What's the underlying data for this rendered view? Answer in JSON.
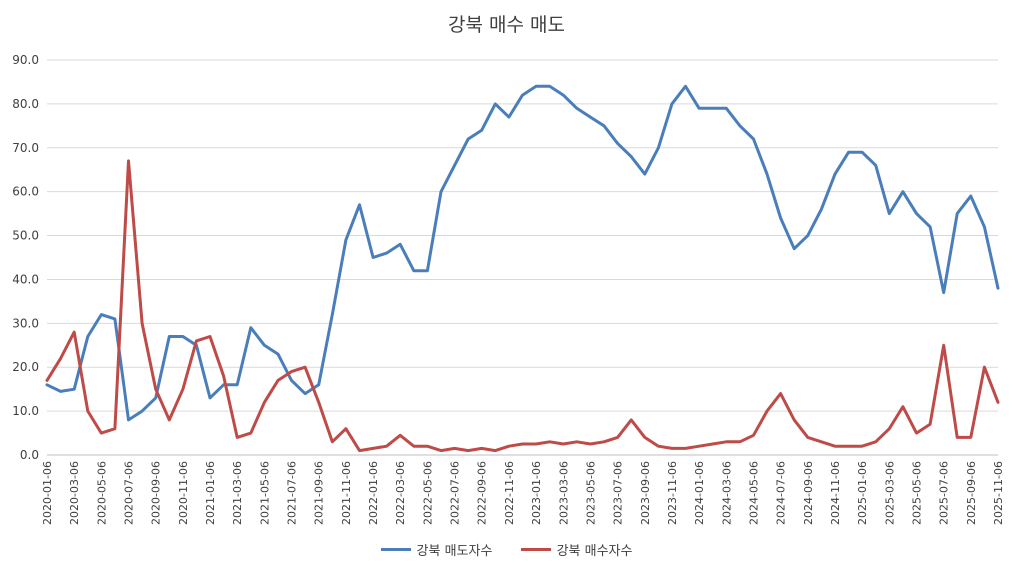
{
  "chart_data": {
    "type": "line",
    "title": "강북 매수 매도",
    "xlabel": "",
    "ylabel": "",
    "ylim": [
      0,
      90
    ],
    "yticks": [
      "0.0",
      "10.0",
      "20.0",
      "30.0",
      "40.0",
      "50.0",
      "60.0",
      "70.0",
      "80.0",
      "90.0"
    ],
    "grid": true,
    "legend_position": "bottom",
    "x_tick_labels": [
      "2020-01-06",
      "2020-03-06",
      "2020-05-06",
      "2020-07-06",
      "2020-09-06",
      "2020-11-06",
      "2021-01-06",
      "2021-03-06",
      "2021-05-06",
      "2021-07-06",
      "2021-09-06",
      "2021-11-06",
      "2022-01-06",
      "2022-03-06",
      "2022-05-06",
      "2022-07-06",
      "2022-09-06",
      "2022-11-06",
      "2023-01-06",
      "2023-03-06",
      "2023-05-06",
      "2023-07-06",
      "2023-09-06",
      "2023-11-06",
      "2024-01-06",
      "2024-03-06",
      "2024-05-06",
      "2024-07-06",
      "2024-09-06",
      "2024-11-06",
      "2025-01-06",
      "2025-03-06",
      "2025-05-06",
      "2025-07-06",
      "2025-09-06",
      "2025-11-06"
    ],
    "x": [
      "2020-01",
      "2020-02",
      "2020-03",
      "2020-04",
      "2020-05",
      "2020-06",
      "2020-07",
      "2020-08",
      "2020-09",
      "2020-10",
      "2020-11",
      "2020-12",
      "2021-01",
      "2021-02",
      "2021-03",
      "2021-04",
      "2021-05",
      "2021-06",
      "2021-07",
      "2021-08",
      "2021-09",
      "2021-10",
      "2021-11",
      "2021-12",
      "2022-01",
      "2022-02",
      "2022-03",
      "2022-04",
      "2022-05",
      "2022-06",
      "2022-07",
      "2022-08",
      "2022-09",
      "2022-10",
      "2022-11",
      "2022-12",
      "2023-01",
      "2023-02",
      "2023-03",
      "2023-04",
      "2023-05",
      "2023-06",
      "2023-07",
      "2023-08",
      "2023-09",
      "2023-10",
      "2023-11",
      "2023-12",
      "2024-01",
      "2024-02",
      "2024-03",
      "2024-04",
      "2024-05",
      "2024-06",
      "2024-07",
      "2024-08",
      "2024-09",
      "2024-10",
      "2024-11",
      "2024-12",
      "2025-01",
      "2025-02",
      "2025-03",
      "2025-04",
      "2025-05",
      "2025-06",
      "2025-07",
      "2025-08",
      "2025-09",
      "2025-10",
      "2025-11"
    ],
    "series": [
      {
        "name": "강북 매도자수",
        "color": "#4a7ebb",
        "values": [
          16,
          14.5,
          15,
          27,
          32,
          31,
          8,
          10,
          13,
          27,
          27,
          25,
          13,
          16,
          16,
          29,
          25,
          23,
          17,
          14,
          16,
          32,
          49,
          57,
          45,
          46,
          48,
          42,
          42,
          60,
          66,
          72,
          74,
          80,
          77,
          82,
          84,
          84,
          82,
          79,
          77,
          75,
          71,
          68,
          64,
          70,
          80,
          84,
          79,
          79,
          79,
          75,
          72,
          64,
          54,
          47,
          50,
          56,
          64,
          69,
          69,
          66,
          55,
          60,
          55,
          52,
          37,
          55,
          59,
          52,
          38
        ]
      },
      {
        "name": "강북 매수자수",
        "color": "#be4b48",
        "values": [
          17,
          22,
          28,
          10,
          5,
          6,
          67,
          30,
          15,
          8,
          15,
          26,
          27,
          18,
          4,
          5,
          12,
          17,
          19,
          20,
          12,
          3,
          6,
          1,
          1.5,
          2,
          4.5,
          2,
          2,
          1,
          1.5,
          1,
          1.5,
          1,
          2,
          2.5,
          2.5,
          3,
          2.5,
          3,
          2.5,
          3,
          4,
          8,
          4,
          2,
          1.5,
          1.5,
          2,
          2.5,
          3,
          3,
          4.5,
          10,
          14,
          8,
          4,
          3,
          2,
          2,
          2,
          3,
          6,
          11,
          5,
          7,
          25,
          4,
          4,
          20,
          12
        ]
      }
    ]
  }
}
